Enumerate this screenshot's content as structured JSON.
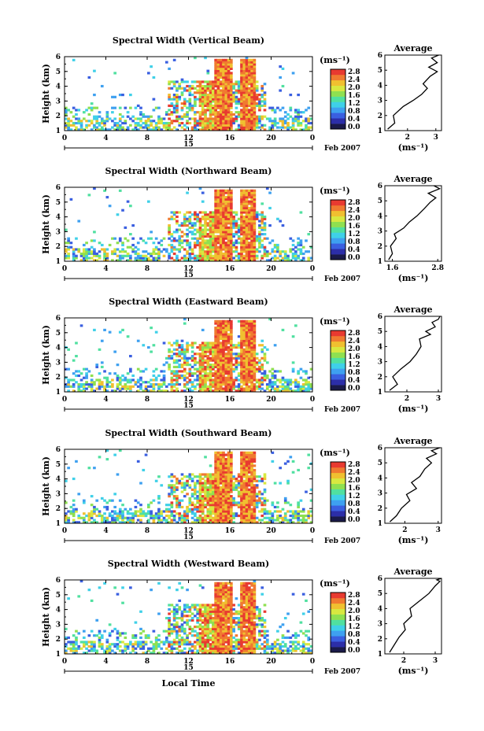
{
  "chart_data": [
    {
      "type": "heatmap",
      "title": "Spectral Width (Vertical Beam)",
      "ylabel": "Height (km)",
      "xlim": [
        0,
        24
      ],
      "ylim": [
        1,
        6
      ],
      "x_ticks": [
        "0",
        "4",
        "8",
        "12",
        "16",
        "20",
        "0"
      ],
      "y_ticks": [
        "1",
        "2",
        "3",
        "4",
        "5",
        "6"
      ],
      "date_label": "15",
      "date_suffix": "Feb 2007",
      "colorbar": {
        "unit": "(ms⁻¹)",
        "ticks": [
          "0.0",
          "0.4",
          "0.8",
          "1.2",
          "1.6",
          "2.0",
          "2.4",
          "2.8"
        ]
      },
      "average_profile": {
        "title": "Average",
        "xlabel": "(ms⁻¹)",
        "x_ticks": [
          "2",
          "3"
        ],
        "xlim": [
          1.2,
          3.2
        ],
        "x": [
          1.3,
          1.55,
          1.5,
          1.85,
          2.2,
          2.5,
          2.7,
          2.55,
          2.8,
          3.05,
          2.75,
          3.05,
          2.85,
          3.1
        ],
        "y": [
          1.1,
          1.5,
          2.0,
          2.6,
          3.0,
          3.4,
          3.8,
          4.1,
          4.6,
          4.9,
          5.2,
          5.5,
          5.8,
          6.0
        ]
      }
    },
    {
      "type": "heatmap",
      "title": "Spectral Width (Northward Beam)",
      "ylabel": "Height (km)",
      "xlim": [
        0,
        24
      ],
      "ylim": [
        1,
        6
      ],
      "x_ticks": [
        "0",
        "4",
        "8",
        "12",
        "16",
        "20",
        "0"
      ],
      "y_ticks": [
        "1",
        "2",
        "3",
        "4",
        "5",
        "6"
      ],
      "date_label": "15",
      "date_suffix": "Feb 2007",
      "colorbar": {
        "unit": "(ms⁻¹)",
        "ticks": [
          "0.0",
          "0.4",
          "0.8",
          "1.2",
          "1.6",
          "2.0",
          "2.4",
          "2.8"
        ]
      },
      "average_profile": {
        "title": "Average",
        "xlabel": "(ms⁻¹)",
        "x_ticks": [
          "1.6",
          "2.8"
        ],
        "xlim": [
          1.4,
          2.9
        ],
        "x": [
          1.5,
          1.6,
          1.55,
          1.7,
          1.65,
          1.9,
          2.05,
          2.25,
          2.45,
          2.6,
          2.75,
          2.55,
          2.85,
          2.7
        ],
        "y": [
          1.1,
          1.5,
          2.0,
          2.5,
          2.8,
          3.2,
          3.6,
          4.0,
          4.5,
          4.9,
          5.2,
          5.5,
          5.8,
          6.0
        ]
      }
    },
    {
      "type": "heatmap",
      "title": "Spectral Width (Eastward Beam)",
      "ylabel": "Height (km)",
      "xlim": [
        0,
        24
      ],
      "ylim": [
        1,
        6
      ],
      "x_ticks": [
        "0",
        "4",
        "8",
        "12",
        "16",
        "20",
        "0"
      ],
      "y_ticks": [
        "1",
        "2",
        "3",
        "4",
        "5",
        "6"
      ],
      "date_label": "15",
      "date_suffix": "Feb 2007",
      "colorbar": {
        "unit": "(ms⁻¹)",
        "ticks": [
          "0.0",
          "0.4",
          "0.8",
          "1.2",
          "1.6",
          "2.0",
          "2.4",
          "2.8"
        ]
      },
      "average_profile": {
        "title": "Average",
        "xlabel": "(ms⁻¹)",
        "x_ticks": [
          "2",
          "3"
        ],
        "xlim": [
          1.3,
          3.1
        ],
        "x": [
          1.45,
          1.7,
          1.55,
          1.8,
          2.1,
          2.3,
          2.45,
          2.4,
          2.75,
          2.6,
          2.9,
          2.8,
          3.0,
          3.05
        ],
        "y": [
          1.1,
          1.5,
          2.0,
          2.5,
          3.0,
          3.5,
          4.0,
          4.5,
          4.8,
          5.0,
          5.3,
          5.6,
          5.8,
          6.0
        ]
      }
    },
    {
      "type": "heatmap",
      "title": "Spectral Width (Southward Beam)",
      "ylabel": "Height (km)",
      "xlim": [
        0,
        24
      ],
      "ylim": [
        1,
        6
      ],
      "x_ticks": [
        "0",
        "4",
        "8",
        "12",
        "16",
        "20",
        "0"
      ],
      "y_ticks": [
        "1",
        "2",
        "3",
        "4",
        "5",
        "6"
      ],
      "date_label": "15",
      "date_suffix": "Feb 2007",
      "colorbar": {
        "unit": "(ms⁻¹)",
        "ticks": [
          "0.0",
          "0.4",
          "0.8",
          "1.2",
          "1.6",
          "2.0",
          "2.4",
          "2.8"
        ]
      },
      "average_profile": {
        "title": "Average",
        "xlabel": "(ms⁻¹)",
        "x_ticks": [
          "2",
          "3"
        ],
        "xlim": [
          1.4,
          3.1
        ],
        "x": [
          1.55,
          1.75,
          1.9,
          2.15,
          2.05,
          2.35,
          2.2,
          2.45,
          2.6,
          2.8,
          2.65,
          2.95,
          2.8,
          3.05
        ],
        "y": [
          1.1,
          1.5,
          2.0,
          2.5,
          2.9,
          3.3,
          3.7,
          4.1,
          4.6,
          5.0,
          5.3,
          5.6,
          5.8,
          6.0
        ]
      }
    },
    {
      "type": "heatmap",
      "title": "Spectral Width (Westward Beam)",
      "ylabel": "Height (km)",
      "xlim": [
        0,
        24
      ],
      "ylim": [
        1,
        6
      ],
      "x_ticks": [
        "0",
        "4",
        "8",
        "12",
        "16",
        "20",
        "0"
      ],
      "y_ticks": [
        "1",
        "2",
        "3",
        "4",
        "5",
        "6"
      ],
      "date_label": "15",
      "date_suffix": "Feb 2007",
      "xlabel": "Local Time",
      "colorbar": {
        "unit": "(ms⁻¹)",
        "ticks": [
          "0.0",
          "0.4",
          "0.8",
          "1.2",
          "1.6",
          "2.0",
          "2.4",
          "2.8"
        ]
      },
      "average_profile": {
        "title": "Average",
        "xlabel": "(ms⁻¹)",
        "x_ticks": [
          "2",
          "3"
        ],
        "xlim": [
          1.4,
          3.2
        ],
        "x": [
          1.55,
          1.7,
          1.85,
          2.05,
          2.0,
          2.25,
          2.2,
          2.5,
          2.8,
          3.0,
          3.15,
          3.05,
          3.2
        ],
        "y": [
          1.1,
          1.6,
          2.1,
          2.6,
          3.0,
          3.5,
          4.0,
          4.5,
          5.0,
          5.5,
          5.8,
          5.9,
          6.0
        ]
      }
    }
  ],
  "colors": {
    "colorbar": [
      "#1a1a4a",
      "#2c2ea8",
      "#3a5fe0",
      "#3ea0f0",
      "#3fd0e8",
      "#50e0a0",
      "#8fe050",
      "#d8e840",
      "#f0c030",
      "#f07a30",
      "#e83a30"
    ]
  }
}
